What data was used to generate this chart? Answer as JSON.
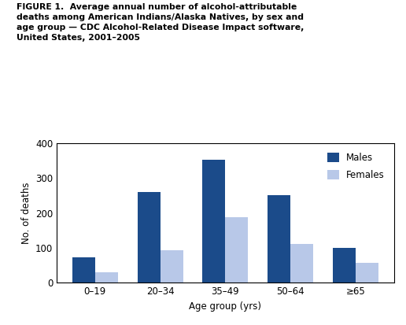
{
  "categories": [
    "0–19",
    "20–34",
    "35–49",
    "50–64",
    "≥65"
  ],
  "males": [
    72,
    260,
    353,
    250,
    100
  ],
  "females": [
    30,
    93,
    187,
    110,
    57
  ],
  "male_color": "#1B4B8A",
  "female_color": "#B8C8E8",
  "ylabel": "No. of deaths",
  "xlabel": "Age group (yrs)",
  "ylim": [
    0,
    400
  ],
  "yticks": [
    0,
    100,
    200,
    300,
    400
  ],
  "legend_labels": [
    "Males",
    "Females"
  ],
  "title": "FIGURE 1.  Average annual number of alcohol-attributable\ndeaths among American Indians/Alaska Natives, by sex and\nage group — CDC Alcohol-Related Disease Impact software,\nUnited States, 2001–2005",
  "bar_width": 0.35
}
